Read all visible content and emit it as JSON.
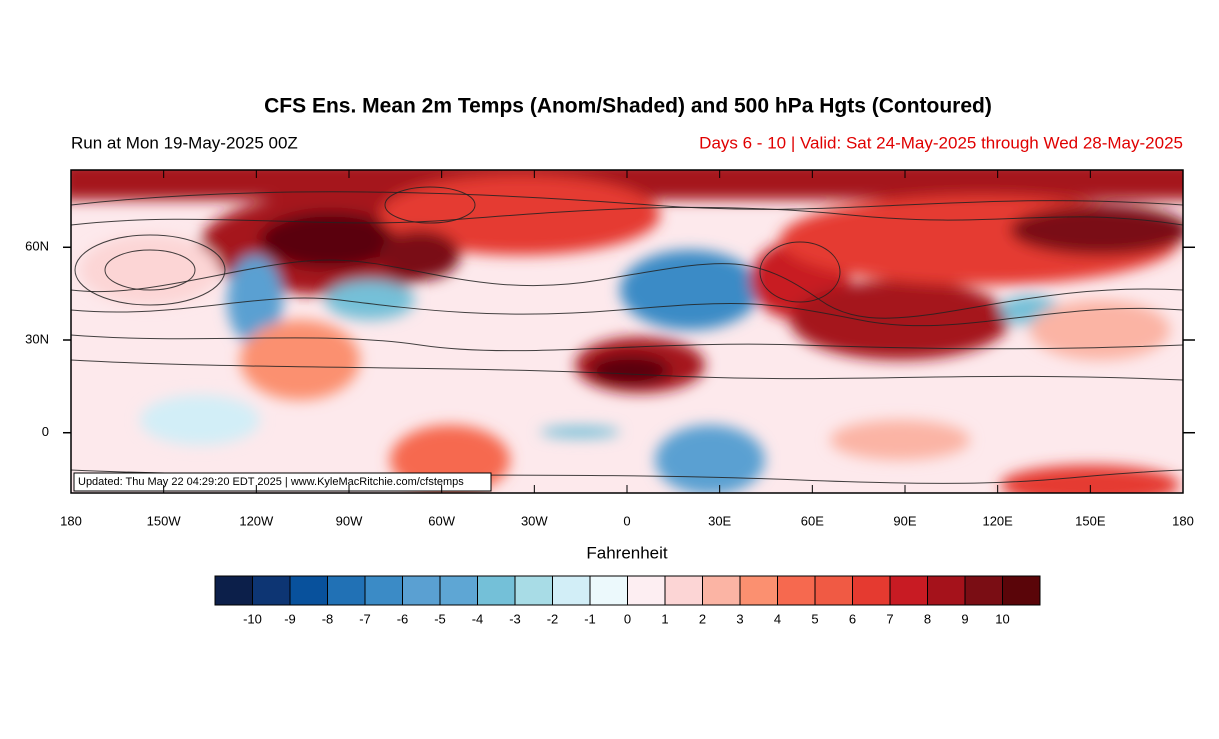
{
  "map": {
    "title": "CFS Ens. Mean 2m Temps (Anom/Shaded) and 500 hPa Hgts (Contoured)",
    "subtitle_left": "Run at Mon 19-May-2025 00Z",
    "subtitle_right": "Days 6 - 10 | Valid: Sat 24-May-2025 through Wed 28-May-2025",
    "updated_note": "Updated: Thu May 22 04:29:20 EDT 2025 | www.KyleMacRitchie.com/cfstemps",
    "xlim": [
      -180,
      180
    ],
    "ylim": [
      -19.5,
      85
    ],
    "xticks": [
      {
        "value": -180,
        "label": "180"
      },
      {
        "value": -150,
        "label": "150W"
      },
      {
        "value": -120,
        "label": "120W"
      },
      {
        "value": -90,
        "label": "90W"
      },
      {
        "value": -60,
        "label": "60W"
      },
      {
        "value": -30,
        "label": "30W"
      },
      0,
      {
        "value": 30,
        "label": "30E"
      },
      {
        "value": 60,
        "label": "60E"
      },
      {
        "value": 90,
        "label": "90E"
      },
      {
        "value": 120,
        "label": "120E"
      },
      {
        "value": 150,
        "label": "150E"
      },
      {
        "value": 180,
        "label": "180"
      }
    ],
    "yticks": [
      0,
      {
        "value": 30,
        "label": "30N"
      },
      {
        "value": 60,
        "label": "60N"
      }
    ],
    "colorbar": {
      "label": "Fahrenheit",
      "levels": [
        -10,
        -9,
        -8,
        -7,
        -6,
        -5,
        -4,
        -3,
        -2,
        -1,
        0,
        1,
        2,
        3,
        4,
        5,
        6,
        7,
        8,
        9,
        10
      ],
      "colors": [
        "#0c1f4a",
        "#0d3573",
        "#08519c",
        "#2171b5",
        "#3b8bc6",
        "#5aa0d2",
        "#5ea6d4",
        "#74c0d8",
        "#a8dce6",
        "#d2eef7",
        "#ecf9fc",
        "#fdeef2",
        "#fcd5d5",
        "#fbb4a4",
        "#fb9070",
        "#f6694f",
        "#f05a44",
        "#e53a30",
        "#c81b23",
        "#a5121b",
        "#7a0d14",
        "#5a0509"
      ]
    }
  }
}
